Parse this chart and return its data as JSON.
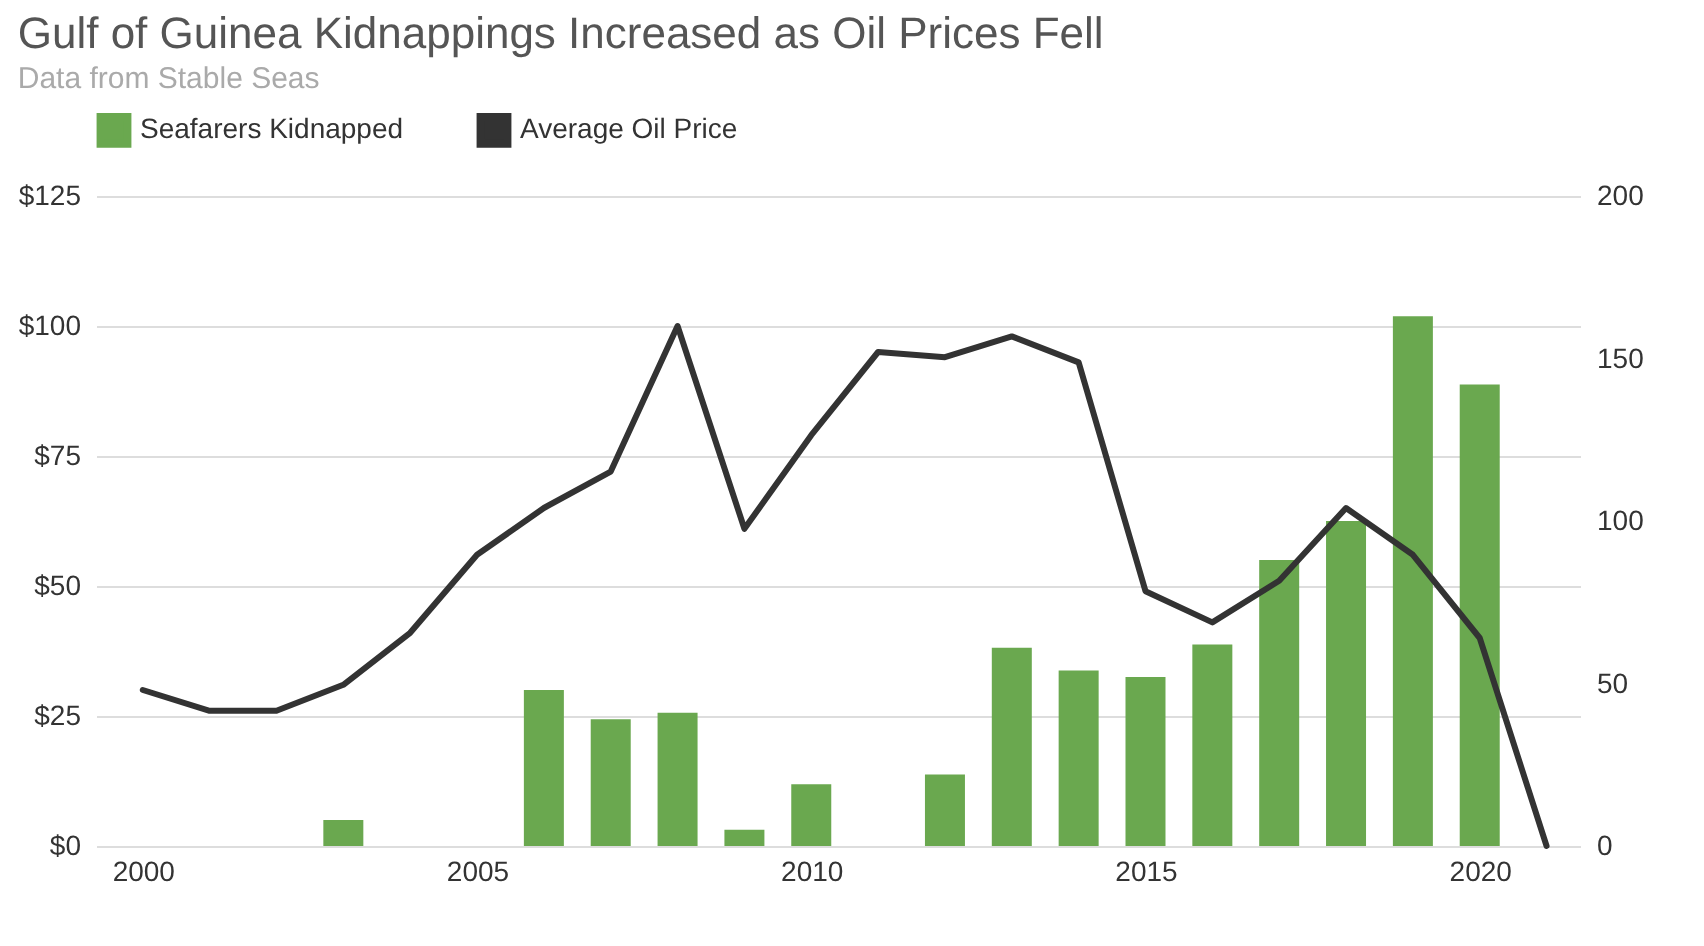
{
  "chart_data": {
    "type": "bar",
    "title": "Gulf of Guinea Kidnappings Increased as Oil Prices Fell",
    "subtitle": "Data from Stable Seas",
    "x": [
      2000,
      2001,
      2002,
      2003,
      2004,
      2005,
      2006,
      2007,
      2008,
      2009,
      2010,
      2011,
      2012,
      2013,
      2014,
      2015,
      2016,
      2017,
      2018,
      2019,
      2020,
      2021
    ],
    "series": [
      {
        "name": "Seafarers Kidnapped",
        "axis": "y2",
        "color": "#6aa84f",
        "values": [
          null,
          null,
          null,
          8,
          null,
          null,
          48,
          39,
          41,
          5,
          19,
          null,
          22,
          61,
          54,
          52,
          62,
          88,
          100,
          163,
          142,
          null
        ]
      },
      {
        "name": "Average Oil Price",
        "type": "line",
        "color": "#333333",
        "values": [
          30,
          26,
          26,
          31,
          41,
          56,
          65,
          72,
          100,
          61,
          79,
          95,
          94,
          98,
          93,
          49,
          43,
          51,
          65,
          56,
          40,
          0
        ]
      }
    ],
    "xlim": [
      1999.3,
      2021.5
    ],
    "xticks": [
      2000,
      2005,
      2010,
      2015,
      2020
    ],
    "ylim": [
      0,
      125
    ],
    "yticks": [
      {
        "value": 0,
        "label": "$0"
      },
      {
        "value": 25,
        "label": "$25"
      },
      {
        "value": 50,
        "label": "$50"
      },
      {
        "value": 75,
        "label": "$75"
      },
      {
        "value": 100,
        "label": "$100"
      },
      {
        "value": 125,
        "label": "$125"
      }
    ],
    "y2lim": [
      0,
      200
    ],
    "y2ticks": [
      0,
      50,
      100,
      150,
      200
    ],
    "grid": "y",
    "legend": "top",
    "marker": "none",
    "line_style": "solid"
  }
}
